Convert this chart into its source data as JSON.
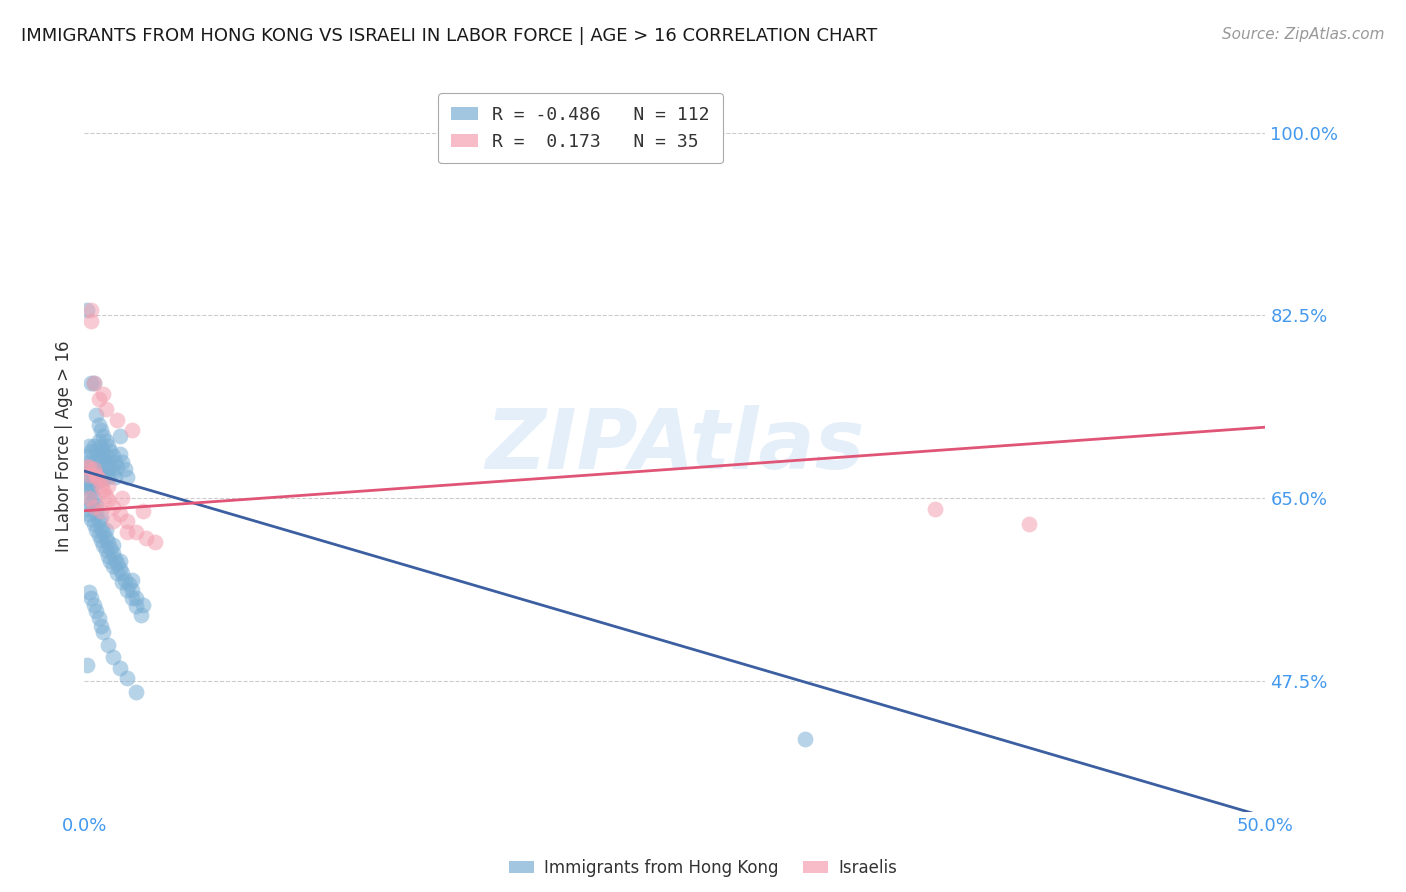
{
  "title": "IMMIGRANTS FROM HONG KONG VS ISRAELI IN LABOR FORCE | AGE > 16 CORRELATION CHART",
  "source": "Source: ZipAtlas.com",
  "ylabel": "In Labor Force | Age > 16",
  "xlim": [
    0.0,
    0.5
  ],
  "ylim": [
    0.35,
    1.05
  ],
  "yticks": [
    1.0,
    0.825,
    0.65,
    0.475
  ],
  "ytick_labels": [
    "100.0%",
    "82.5%",
    "65.0%",
    "47.5%"
  ],
  "xticks": [
    0.0,
    0.1,
    0.2,
    0.3,
    0.4,
    0.5
  ],
  "xtick_labels": [
    "0.0%",
    "",
    "",
    "",
    "",
    "50.0%"
  ],
  "hk_R": -0.486,
  "hk_N": 112,
  "il_R": 0.173,
  "il_N": 35,
  "hk_color": "#7BAFD4",
  "il_color": "#F4A0B0",
  "hk_line_color": "#3B5FA0",
  "il_line_color": "#E05575",
  "watermark": "ZIPAtlas",
  "background_color": "#FFFFFF",
  "grid_color": "#CCCCCC",
  "title_color": "#1a1a1a",
  "axis_label_color": "#333333",
  "tick_label_color": "#4499EE",
  "hk_scatter_x": [
    0.001,
    0.001,
    0.001,
    0.002,
    0.002,
    0.002,
    0.002,
    0.003,
    0.003,
    0.003,
    0.003,
    0.003,
    0.004,
    0.004,
    0.004,
    0.004,
    0.005,
    0.005,
    0.005,
    0.005,
    0.006,
    0.006,
    0.006,
    0.006,
    0.007,
    0.007,
    0.007,
    0.007,
    0.008,
    0.008,
    0.008,
    0.008,
    0.009,
    0.009,
    0.009,
    0.01,
    0.01,
    0.01,
    0.011,
    0.011,
    0.012,
    0.012,
    0.013,
    0.013,
    0.014,
    0.015,
    0.015,
    0.016,
    0.017,
    0.018,
    0.002,
    0.003,
    0.004,
    0.005,
    0.006,
    0.007,
    0.008,
    0.009,
    0.01,
    0.011,
    0.012,
    0.013,
    0.014,
    0.015,
    0.016,
    0.017,
    0.019,
    0.02,
    0.022,
    0.025,
    0.001,
    0.002,
    0.003,
    0.004,
    0.005,
    0.006,
    0.007,
    0.008,
    0.009,
    0.01,
    0.011,
    0.012,
    0.014,
    0.016,
    0.018,
    0.02,
    0.022,
    0.024,
    0.002,
    0.003,
    0.004,
    0.005,
    0.006,
    0.007,
    0.008,
    0.01,
    0.012,
    0.015,
    0.018,
    0.022,
    0.001,
    0.002,
    0.003,
    0.004,
    0.005,
    0.007,
    0.009,
    0.012,
    0.015,
    0.02,
    0.305,
    0.001
  ],
  "hk_scatter_y": [
    0.68,
    0.83,
    0.69,
    0.685,
    0.675,
    0.665,
    0.7,
    0.76,
    0.695,
    0.68,
    0.67,
    0.66,
    0.76,
    0.7,
    0.685,
    0.67,
    0.73,
    0.695,
    0.68,
    0.665,
    0.72,
    0.705,
    0.69,
    0.675,
    0.715,
    0.7,
    0.688,
    0.675,
    0.71,
    0.695,
    0.682,
    0.668,
    0.705,
    0.69,
    0.675,
    0.7,
    0.685,
    0.67,
    0.695,
    0.68,
    0.69,
    0.675,
    0.685,
    0.67,
    0.68,
    0.71,
    0.692,
    0.685,
    0.678,
    0.67,
    0.65,
    0.645,
    0.64,
    0.635,
    0.628,
    0.622,
    0.618,
    0.612,
    0.608,
    0.602,
    0.598,
    0.592,
    0.588,
    0.582,
    0.578,
    0.572,
    0.568,
    0.562,
    0.555,
    0.548,
    0.64,
    0.635,
    0.63,
    0.625,
    0.62,
    0.615,
    0.61,
    0.605,
    0.6,
    0.595,
    0.59,
    0.585,
    0.578,
    0.57,
    0.562,
    0.555,
    0.547,
    0.538,
    0.56,
    0.555,
    0.548,
    0.542,
    0.535,
    0.528,
    0.522,
    0.51,
    0.498,
    0.488,
    0.478,
    0.465,
    0.668,
    0.662,
    0.656,
    0.65,
    0.644,
    0.632,
    0.62,
    0.605,
    0.59,
    0.572,
    0.42,
    0.49
  ],
  "il_scatter_x": [
    0.001,
    0.002,
    0.003,
    0.004,
    0.005,
    0.006,
    0.007,
    0.008,
    0.009,
    0.01,
    0.012,
    0.015,
    0.018,
    0.022,
    0.026,
    0.004,
    0.006,
    0.009,
    0.014,
    0.02,
    0.003,
    0.008,
    0.002,
    0.005,
    0.01,
    0.016,
    0.025,
    0.002,
    0.004,
    0.007,
    0.012,
    0.018,
    0.03,
    0.36,
    0.4
  ],
  "il_scatter_y": [
    0.68,
    0.672,
    0.82,
    0.678,
    0.672,
    0.668,
    0.662,
    0.658,
    0.652,
    0.648,
    0.642,
    0.635,
    0.628,
    0.618,
    0.612,
    0.76,
    0.745,
    0.735,
    0.725,
    0.715,
    0.83,
    0.75,
    0.68,
    0.67,
    0.662,
    0.65,
    0.638,
    0.65,
    0.642,
    0.638,
    0.628,
    0.618,
    0.608,
    0.64,
    0.625
  ],
  "hk_line_x0": 0.0,
  "hk_line_y0": 0.676,
  "hk_line_x1": 0.5,
  "hk_line_y1": 0.345,
  "il_line_x0": 0.0,
  "il_line_y0": 0.638,
  "il_line_x1": 0.5,
  "il_line_y1": 0.718,
  "legend_hk_label": "Immigrants from Hong Kong",
  "legend_il_label": "Israelis"
}
